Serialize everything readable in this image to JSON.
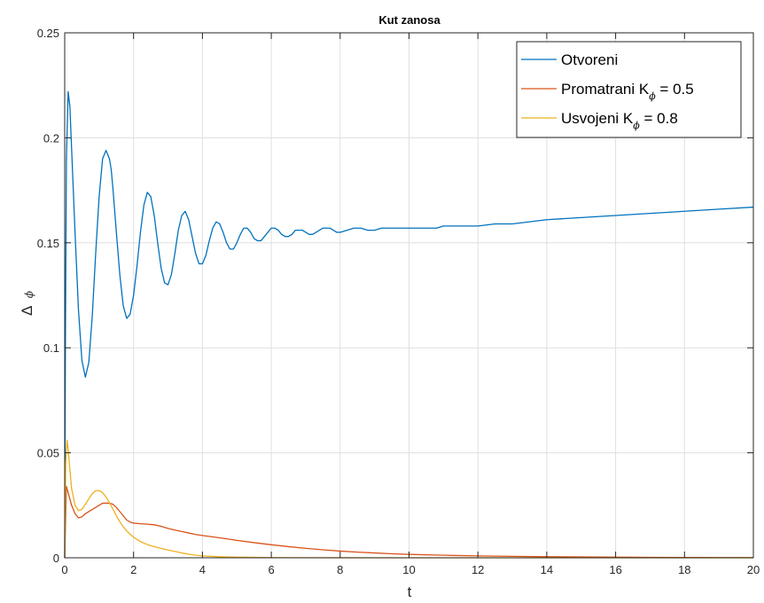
{
  "chart_data": {
    "type": "line",
    "title": "Kut zanosa",
    "xlabel": "t",
    "ylabel": {
      "delta": "Δ",
      "symbol": "ϕ"
    },
    "xlim": [
      0,
      20
    ],
    "ylim": [
      0,
      0.25
    ],
    "xticks": [
      0,
      2,
      4,
      6,
      8,
      10,
      12,
      14,
      16,
      18,
      20
    ],
    "yticks": [
      0,
      0.05,
      0.1,
      0.15,
      0.2,
      0.25
    ],
    "xtick_labels": [
      "0",
      "2",
      "4",
      "6",
      "8",
      "10",
      "12",
      "14",
      "16",
      "18",
      "20"
    ],
    "ytick_labels": [
      "0",
      "0.05",
      "0.1",
      "0.15",
      "0.2",
      "0.25"
    ],
    "grid": true,
    "legend_position": "top-right",
    "series": [
      {
        "name": "Otvoreni",
        "legend_main": "Otvoreni",
        "legend_sub": "",
        "legend_tail": "",
        "color": "#0072BD",
        "x": [
          0,
          0.02,
          0.05,
          0.1,
          0.15,
          0.2,
          0.3,
          0.4,
          0.5,
          0.6,
          0.7,
          0.8,
          0.9,
          1.0,
          1.1,
          1.2,
          1.3,
          1.35,
          1.4,
          1.5,
          1.6,
          1.7,
          1.8,
          1.9,
          2.0,
          2.1,
          2.2,
          2.3,
          2.4,
          2.5,
          2.6,
          2.7,
          2.8,
          2.9,
          3.0,
          3.1,
          3.2,
          3.3,
          3.4,
          3.5,
          3.6,
          3.7,
          3.8,
          3.9,
          4.0,
          4.1,
          4.2,
          4.3,
          4.4,
          4.5,
          4.6,
          4.7,
          4.8,
          4.9,
          5.0,
          5.1,
          5.2,
          5.3,
          5.4,
          5.5,
          5.6,
          5.7,
          5.8,
          5.9,
          6.0,
          6.1,
          6.2,
          6.3,
          6.4,
          6.5,
          6.6,
          6.7,
          6.8,
          6.9,
          7.0,
          7.1,
          7.2,
          7.3,
          7.4,
          7.5,
          7.6,
          7.7,
          7.8,
          7.9,
          8.0,
          8.2,
          8.4,
          8.6,
          8.8,
          9.0,
          9.2,
          9.4,
          9.6,
          9.8,
          10.0,
          10.2,
          10.4,
          10.6,
          10.8,
          11.0,
          11.5,
          12.0,
          12.5,
          13.0,
          13.5,
          14.0,
          15.0,
          16.0,
          17.0,
          18.0,
          19.0,
          20.0
        ],
        "y": [
          0.0,
          0.1,
          0.19,
          0.222,
          0.215,
          0.195,
          0.155,
          0.118,
          0.094,
          0.086,
          0.093,
          0.115,
          0.145,
          0.172,
          0.19,
          0.194,
          0.19,
          0.185,
          0.176,
          0.155,
          0.135,
          0.12,
          0.114,
          0.116,
          0.125,
          0.139,
          0.155,
          0.168,
          0.174,
          0.172,
          0.163,
          0.15,
          0.138,
          0.131,
          0.13,
          0.135,
          0.145,
          0.156,
          0.163,
          0.165,
          0.161,
          0.153,
          0.145,
          0.14,
          0.14,
          0.144,
          0.151,
          0.157,
          0.16,
          0.159,
          0.155,
          0.15,
          0.147,
          0.147,
          0.15,
          0.154,
          0.157,
          0.157,
          0.155,
          0.152,
          0.151,
          0.151,
          0.153,
          0.155,
          0.157,
          0.157,
          0.156,
          0.154,
          0.153,
          0.153,
          0.154,
          0.156,
          0.156,
          0.156,
          0.155,
          0.154,
          0.154,
          0.155,
          0.156,
          0.157,
          0.157,
          0.157,
          0.156,
          0.155,
          0.155,
          0.156,
          0.157,
          0.157,
          0.156,
          0.156,
          0.157,
          0.157,
          0.157,
          0.157,
          0.157,
          0.157,
          0.157,
          0.157,
          0.157,
          0.158,
          0.158,
          0.158,
          0.159,
          0.159,
          0.16,
          0.161,
          0.162,
          0.163,
          0.164,
          0.165,
          0.166,
          0.167
        ]
      },
      {
        "name": "Promatrani K_ϕ = 0.5",
        "legend_main": "Promatrani K",
        "legend_sub": "ϕ",
        "legend_tail": " = 0.5",
        "color": "#D95319",
        "x": [
          0,
          0.05,
          0.1,
          0.2,
          0.3,
          0.4,
          0.5,
          0.6,
          0.7,
          0.8,
          0.9,
          1.0,
          1.1,
          1.2,
          1.3,
          1.4,
          1.5,
          1.6,
          1.7,
          1.8,
          1.9,
          2.0,
          2.2,
          2.4,
          2.6,
          2.8,
          3.0,
          3.2,
          3.4,
          3.6,
          3.8,
          4.0,
          4.5,
          5.0,
          5.5,
          6.0,
          6.5,
          7.0,
          7.5,
          8.0,
          8.5,
          9.0,
          9.5,
          10.0,
          11.0,
          12.0,
          13.0,
          14.0,
          15.0,
          16.0,
          17.0,
          18.0,
          19.0,
          20.0
        ],
        "y": [
          0.0,
          0.034,
          0.031,
          0.025,
          0.021,
          0.019,
          0.0195,
          0.021,
          0.022,
          0.023,
          0.024,
          0.025,
          0.026,
          0.026,
          0.026,
          0.0255,
          0.024,
          0.022,
          0.02,
          0.018,
          0.017,
          0.0165,
          0.0162,
          0.016,
          0.0157,
          0.015,
          0.014,
          0.0132,
          0.0125,
          0.0118,
          0.0111,
          0.0106,
          0.0095,
          0.0083,
          0.0072,
          0.0062,
          0.0053,
          0.0045,
          0.0038,
          0.0032,
          0.0027,
          0.0023,
          0.0019,
          0.0016,
          0.0012,
          0.0009,
          0.0007,
          0.0005,
          0.0004,
          0.0003,
          0.0002,
          0.00015,
          0.0001,
          0.0001
        ]
      },
      {
        "name": "Usvojeni K_ϕ = 0.8",
        "legend_main": "Usvojeni K",
        "legend_sub": "ϕ",
        "legend_tail": " = 0.8",
        "color": "#EDB120",
        "x": [
          0,
          0.03,
          0.07,
          0.1,
          0.15,
          0.2,
          0.3,
          0.4,
          0.5,
          0.6,
          0.7,
          0.8,
          0.9,
          1.0,
          1.1,
          1.2,
          1.3,
          1.4,
          1.5,
          1.6,
          1.7,
          1.8,
          1.9,
          2.0,
          2.2,
          2.4,
          2.6,
          2.8,
          3.0,
          3.2,
          3.4,
          3.6,
          3.8,
          4.0,
          4.5,
          5.0,
          5.5,
          6.0,
          7.0,
          8.0,
          9.0,
          10.0,
          12.0,
          14.0,
          16.0,
          18.0,
          20.0
        ],
        "y": [
          0.0,
          0.045,
          0.056,
          0.052,
          0.042,
          0.033,
          0.025,
          0.0225,
          0.023,
          0.0255,
          0.028,
          0.0305,
          0.032,
          0.032,
          0.031,
          0.029,
          0.0262,
          0.0232,
          0.02,
          0.0172,
          0.0148,
          0.0128,
          0.0112,
          0.0098,
          0.0077,
          0.0063,
          0.0053,
          0.0045,
          0.0037,
          0.003,
          0.0023,
          0.0017,
          0.0012,
          0.0009,
          0.0005,
          0.0003,
          0.0002,
          0.0001,
          5e-05,
          2e-05,
          0.0,
          0.0,
          0.0,
          0.0,
          0.0,
          0.0,
          0.0
        ]
      }
    ]
  }
}
